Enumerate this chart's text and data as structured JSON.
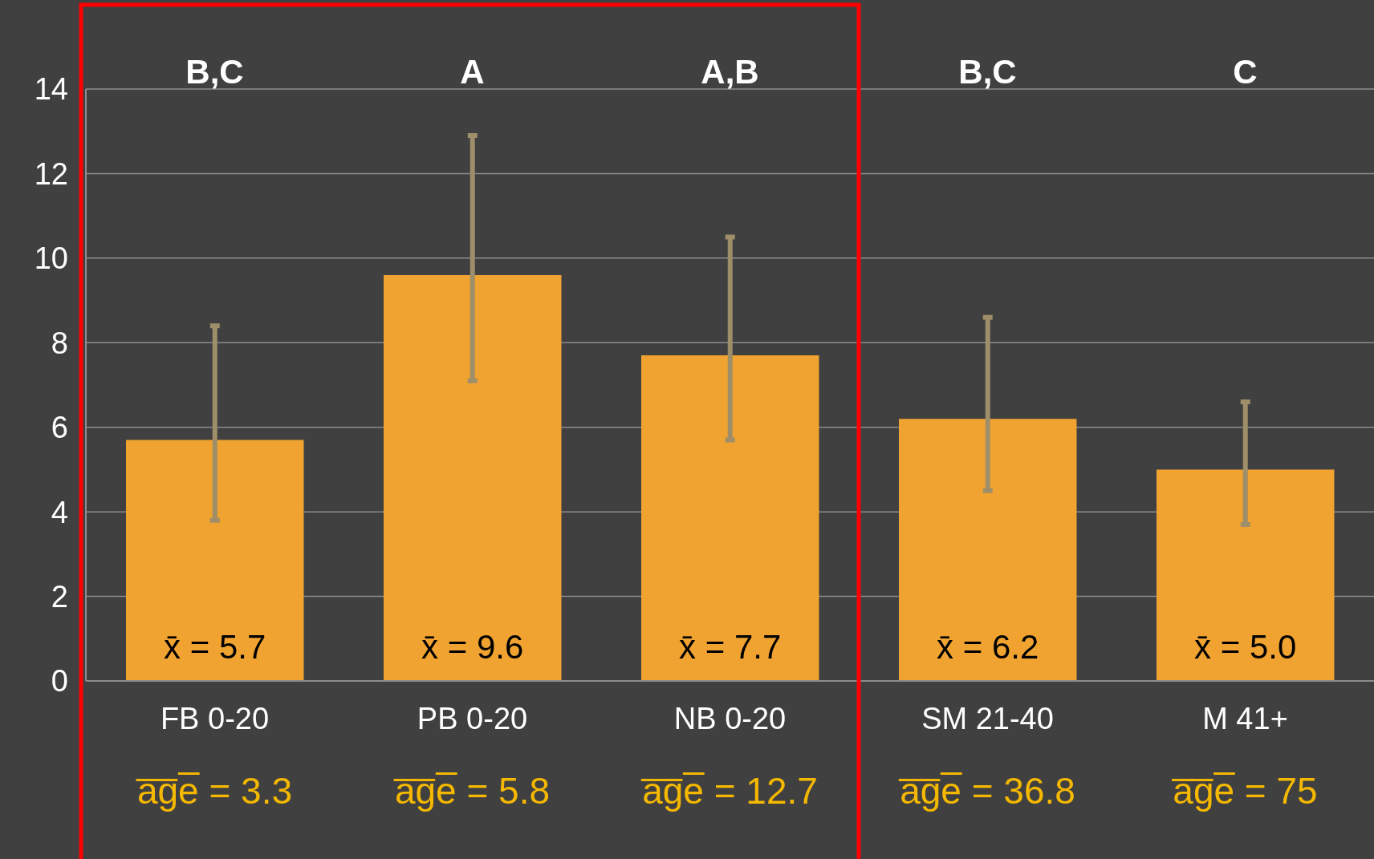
{
  "chart_data": {
    "type": "bar",
    "categories": [
      "FB 0-20",
      "PB 0-20",
      "NB 0-20",
      "SM 21-40",
      "M 41+"
    ],
    "values": [
      5.7,
      9.6,
      7.7,
      6.2,
      5.0
    ],
    "color": "#f0a330",
    "errors": [
      [
        3.8,
        8.4
      ],
      [
        7.1,
        12.9
      ],
      [
        5.7,
        10.5
      ],
      [
        4.5,
        8.6
      ],
      [
        3.7,
        6.6
      ]
    ],
    "value_labels": [
      "x̄ = 5.7",
      "x̄ = 9.6",
      "x̄ = 7.7",
      "x̄ = 6.2",
      "x̄ = 5.0"
    ],
    "ylim": [
      0,
      14
    ],
    "yticks": [
      0,
      2,
      4,
      6,
      8,
      10,
      12,
      14
    ],
    "grid": "y",
    "annotations": [
      "B,C",
      "A",
      "A,B",
      "B,C",
      "C",
      "a̅g̅e̅ = 3.3",
      "a̅g̅e̅ = 5.8",
      "a̅g̅e̅ = 12.7",
      "a̅g̅e̅ = 36.8",
      "a̅g̅e̅ = 75"
    ]
  }
}
